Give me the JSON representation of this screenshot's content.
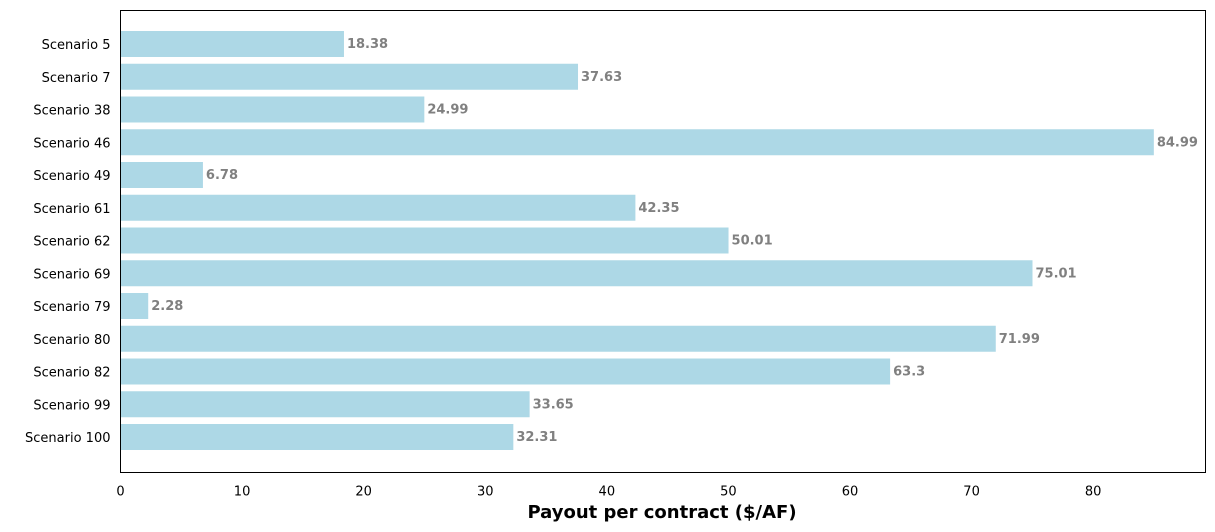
{
  "chart_data": {
    "type": "bar",
    "orientation": "horizontal",
    "categories": [
      "Scenario 5",
      "Scenario 7",
      "Scenario 38",
      "Scenario 46",
      "Scenario 49",
      "Scenario 61",
      "Scenario 62",
      "Scenario 69",
      "Scenario 79",
      "Scenario 80",
      "Scenario 82",
      "Scenario 99",
      "Scenario 100"
    ],
    "values": [
      18.38,
      37.63,
      24.99,
      84.99,
      6.78,
      42.35,
      50.01,
      75.01,
      2.28,
      71.99,
      63.3,
      33.65,
      32.31
    ],
    "value_labels": [
      "18.38",
      "37.63",
      "24.99",
      "84.99",
      "6.78",
      "42.35",
      "50.01",
      "75.01",
      "2.28",
      "71.99",
      "63.3",
      "33.65",
      "32.31"
    ],
    "xlabel": "Payout per contract ($/AF)",
    "ylabel": "",
    "title": "",
    "xlim": [
      0,
      89.24
    ],
    "xticks": [
      0,
      10,
      20,
      30,
      40,
      50,
      60,
      70,
      80
    ],
    "bar_color": "#add8e6",
    "label_color": "#808080",
    "grid": false,
    "legend": "none"
  }
}
